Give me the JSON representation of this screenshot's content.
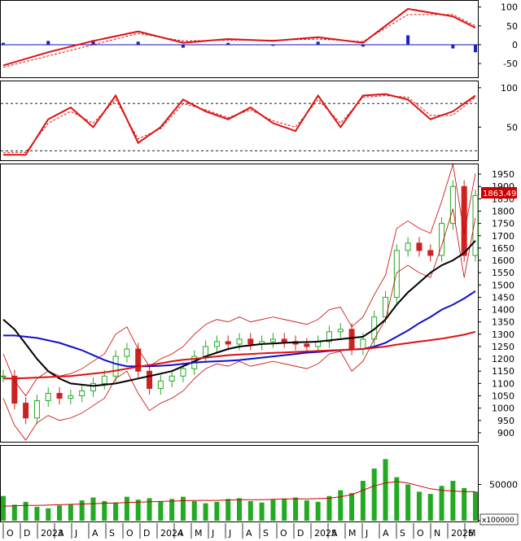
{
  "colors": {
    "up": "#22aa22",
    "down": "#cc2222",
    "ma_black": "#000000",
    "ma_blue": "#1010cc",
    "ma_red": "#dd1111",
    "bollinger": "#cc0000",
    "macd_hist": "#2020bb",
    "volume": "#22aa22",
    "volume_ma": "#cc0000",
    "price_tag": "#cc0000",
    "grid_dash": "#000000"
  },
  "price_tag": "1863.49",
  "volume_unit": "x100000",
  "chart_data": [
    {
      "panel": "macd",
      "type": "line",
      "y_ticks": [
        "100",
        "50",
        "0",
        "-50"
      ],
      "ylim": [
        -80,
        110
      ],
      "series": [
        {
          "role": "macd",
          "x": [
            0,
            4,
            8,
            12,
            16,
            20,
            24,
            28,
            32,
            36,
            40,
            42
          ],
          "values": [
            -55,
            -20,
            10,
            35,
            5,
            15,
            10,
            20,
            5,
            95,
            75,
            45
          ]
        },
        {
          "role": "signal",
          "x": [
            0,
            4,
            8,
            12,
            16,
            20,
            24,
            28,
            32,
            36,
            40,
            42
          ],
          "values": [
            -60,
            -30,
            0,
            30,
            10,
            12,
            12,
            15,
            8,
            80,
            80,
            50
          ]
        }
      ],
      "histogram": {
        "x": [
          0,
          4,
          8,
          12,
          16,
          20,
          24,
          28,
          32,
          36,
          40,
          42
        ],
        "values": [
          5,
          10,
          12,
          8,
          -8,
          5,
          -3,
          8,
          -5,
          25,
          -10,
          -20
        ]
      }
    },
    {
      "panel": "stochastic",
      "type": "line",
      "y_ticks": [
        "100",
        "50"
      ],
      "ylim": [
        10,
        105
      ],
      "reference_lines": [
        80,
        20
      ],
      "series": [
        {
          "role": "k",
          "x": [
            0,
            2,
            4,
            6,
            8,
            10,
            12,
            14,
            16,
            18,
            20,
            22,
            24,
            26,
            28,
            30,
            32,
            34,
            36,
            38,
            40,
            42
          ],
          "values": [
            15,
            15,
            60,
            75,
            50,
            90,
            30,
            50,
            85,
            70,
            60,
            75,
            55,
            45,
            90,
            50,
            90,
            92,
            85,
            60,
            70,
            90
          ]
        },
        {
          "role": "d",
          "x": [
            0,
            2,
            4,
            6,
            8,
            10,
            12,
            14,
            16,
            18,
            20,
            22,
            24,
            26,
            28,
            30,
            32,
            34,
            36,
            38,
            40,
            42
          ],
          "values": [
            18,
            18,
            55,
            70,
            55,
            85,
            35,
            48,
            80,
            72,
            62,
            72,
            58,
            50,
            85,
            55,
            88,
            90,
            88,
            65,
            65,
            88
          ]
        }
      ]
    },
    {
      "panel": "price",
      "type": "line",
      "y_ticks": [
        "1950",
        "1900",
        "1850",
        "1800",
        "1750",
        "1700",
        "1650",
        "1600",
        "1550",
        "1500",
        "1450",
        "1400",
        "1350",
        "1300",
        "1250",
        "1200",
        "1150",
        "1100",
        "1050",
        "1000",
        "950",
        "900"
      ],
      "ylim": [
        870,
        1980
      ],
      "x": [
        "Sep 2022",
        "Oct 2022",
        "Nov 2022",
        "Dec 2022",
        "Jan 2023",
        "Feb 2023",
        "Mar 2023",
        "Apr 2023",
        "May 2023",
        "Jun 2023",
        "Jul 2023",
        "Aug 2023",
        "Sep 2023",
        "Oct 2023",
        "Nov 2023",
        "Dec 2023",
        "Jan 2024",
        "Feb 2024",
        "Mar 2024",
        "Apr 2024",
        "May 2024",
        "Jun 2024",
        "Jul 2024",
        "Aug 2024",
        "Sep 2024",
        "Oct 2024",
        "Nov 2024",
        "Dec 2024",
        "Jan 2025",
        "Feb 2025",
        "Mar 2025",
        "Apr 2025",
        "May 2025",
        "Jun 2025",
        "Jul 2025",
        "Aug 2025",
        "Sep 2025",
        "Oct 2025",
        "Nov 2025",
        "Dec 2025",
        "Jan 2026",
        "Feb 2026",
        "Mar 2026"
      ],
      "series": [
        {
          "role": "close",
          "values": [
            1130,
            1020,
            960,
            1030,
            1060,
            1040,
            1050,
            1070,
            1100,
            1130,
            1210,
            1240,
            1150,
            1080,
            1110,
            1130,
            1160,
            1210,
            1250,
            1270,
            1260,
            1280,
            1260,
            1270,
            1280,
            1270,
            1260,
            1250,
            1270,
            1310,
            1320,
            1240,
            1280,
            1370,
            1450,
            1640,
            1670,
            1640,
            1620,
            1750,
            1900,
            1620,
            1863
          ]
        },
        {
          "role": "ma_black",
          "values": [
            1360,
            1320,
            1260,
            1200,
            1150,
            1120,
            1100,
            1095,
            1090,
            1095,
            1100,
            1110,
            1120,
            1130,
            1140,
            1150,
            1170,
            1190,
            1210,
            1225,
            1240,
            1250,
            1255,
            1260,
            1262,
            1265,
            1267,
            1268,
            1270,
            1275,
            1280,
            1285,
            1290,
            1320,
            1360,
            1420,
            1470,
            1510,
            1550,
            1580,
            1600,
            1630,
            1680
          ]
        },
        {
          "role": "ma_blue",
          "values": [
            1295,
            1295,
            1290,
            1285,
            1275,
            1265,
            1250,
            1235,
            1215,
            1195,
            1180,
            1170,
            1170,
            1170,
            1172,
            1175,
            1180,
            1185,
            1188,
            1190,
            1192,
            1195,
            1200,
            1205,
            1210,
            1215,
            1220,
            1225,
            1228,
            1232,
            1235,
            1238,
            1240,
            1250,
            1265,
            1290,
            1315,
            1345,
            1370,
            1400,
            1420,
            1445,
            1475
          ]
        },
        {
          "role": "ma_red",
          "values": [
            1120,
            1120,
            1122,
            1124,
            1126,
            1128,
            1130,
            1135,
            1140,
            1145,
            1152,
            1160,
            1168,
            1175,
            1182,
            1190,
            1196,
            1200,
            1205,
            1210,
            1215,
            1218,
            1220,
            1222,
            1224,
            1226,
            1228,
            1230,
            1232,
            1234,
            1236,
            1238,
            1240,
            1245,
            1250,
            1258,
            1264,
            1270,
            1276,
            1282,
            1290,
            1298,
            1310
          ]
        }
      ]
    },
    {
      "panel": "volume",
      "type": "bar",
      "y_ticks": [
        "50000",
        "0"
      ],
      "ylim": [
        0,
        100000
      ],
      "x_labels": [
        "O",
        "D",
        "2023",
        "A",
        "J",
        "A",
        "S",
        "O",
        "D",
        "2024",
        "A",
        "M",
        "J",
        "J",
        "A",
        "S",
        "O",
        "D",
        "2025",
        "A",
        "M",
        "J",
        "A",
        "S",
        "O",
        "N",
        "2026",
        "M"
      ],
      "values": [
        34000,
        22000,
        26000,
        19000,
        17000,
        21000,
        23000,
        28000,
        32000,
        27000,
        25000,
        33000,
        29000,
        31000,
        26000,
        30000,
        33000,
        27000,
        24000,
        26000,
        30000,
        31000,
        27000,
        25000,
        29000,
        30000,
        32000,
        28000,
        26000,
        34000,
        42000,
        38000,
        55000,
        72000,
        85000,
        60000,
        50000,
        40000,
        37000,
        48000,
        55000,
        45000,
        40000
      ],
      "volume_ma": [
        20000,
        20500,
        21000,
        21000,
        21500,
        22000,
        22500,
        23000,
        23500,
        24000,
        24500,
        25000,
        25500,
        26000,
        26500,
        27000,
        27500,
        28000,
        28000,
        28000,
        28500,
        29000,
        29000,
        29000,
        29500,
        30000,
        30000,
        30000,
        30500,
        31000,
        33000,
        36000,
        42000,
        48000,
        52000,
        54000,
        52000,
        48000,
        44000,
        42000,
        41000,
        40000,
        40000
      ]
    }
  ]
}
